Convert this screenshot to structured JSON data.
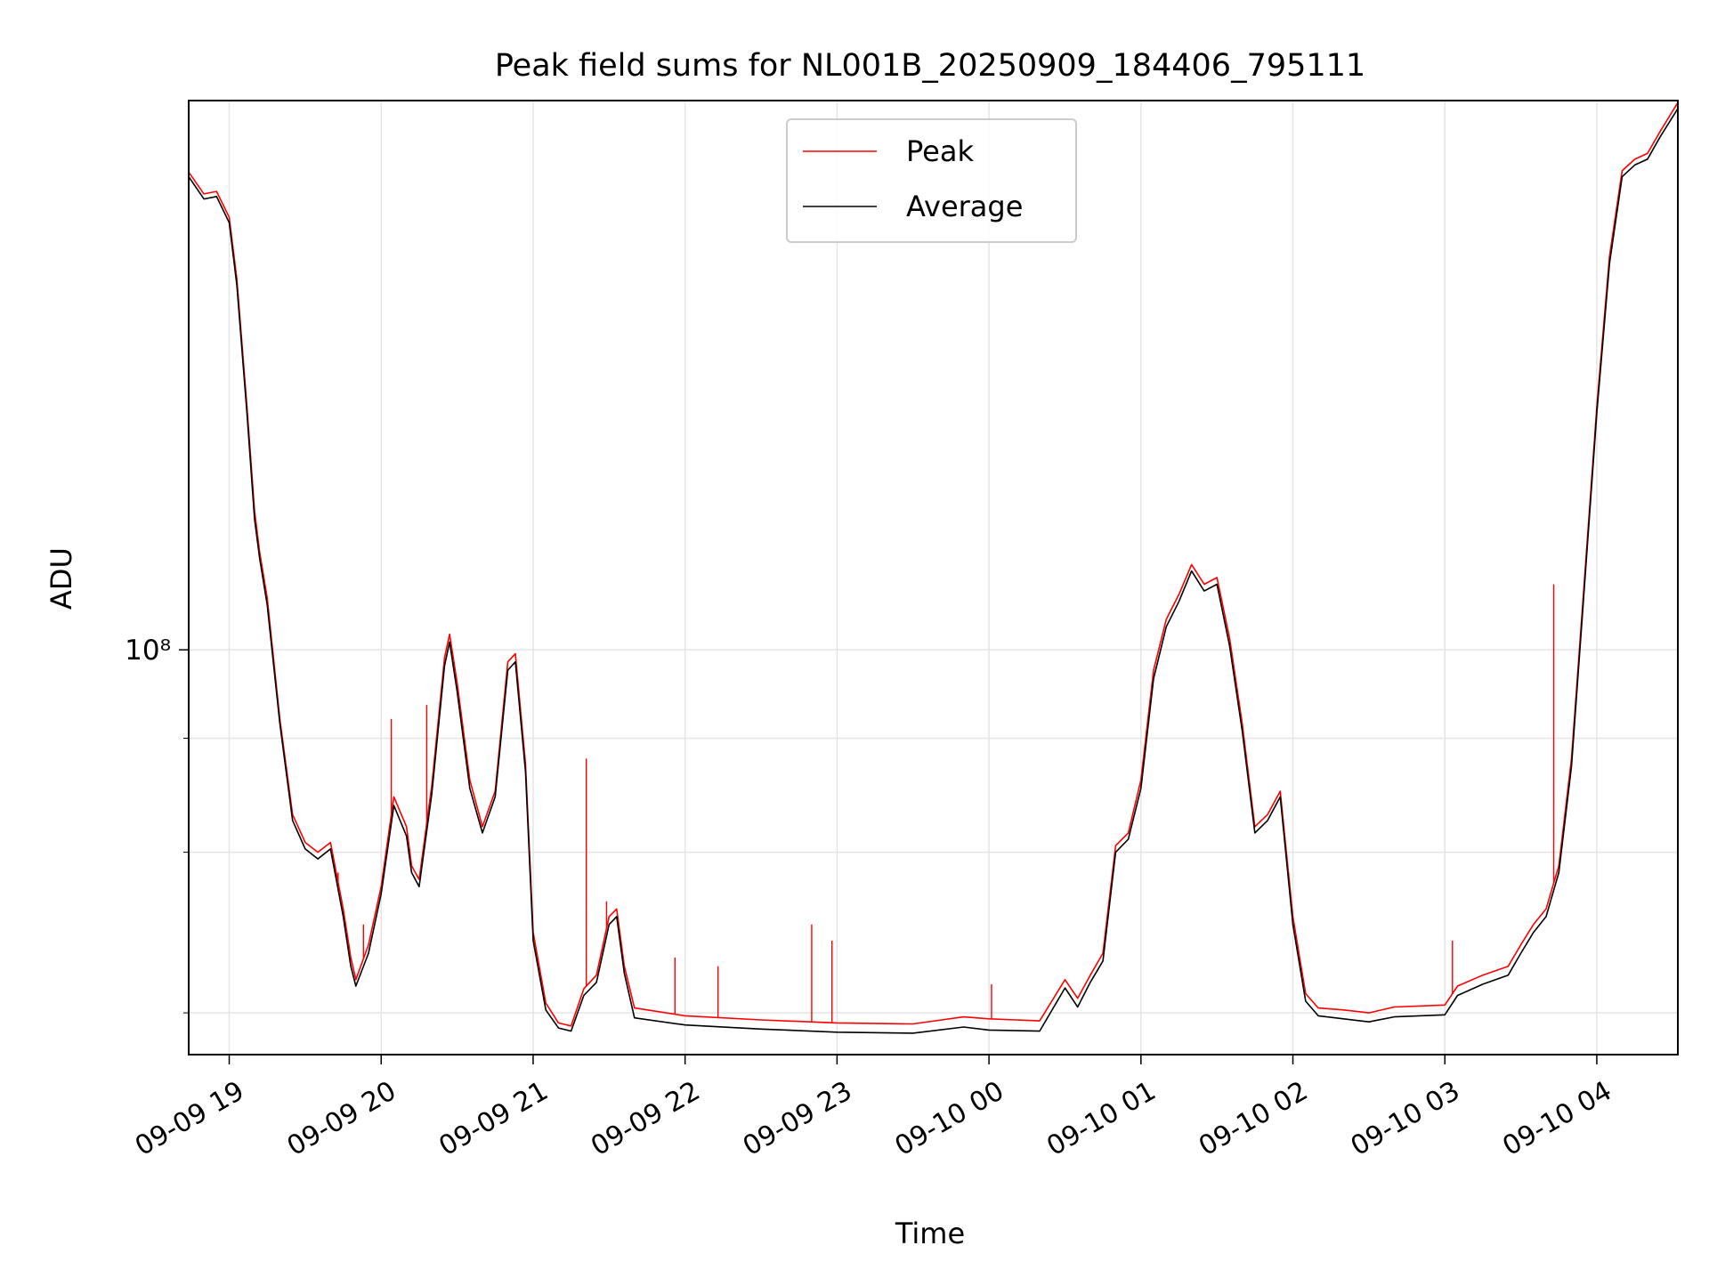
{
  "chart_data": {
    "type": "line",
    "title": "Peak field sums for NL001B_20250909_184406_795111",
    "xlabel": "Time",
    "ylabel": "ADU",
    "y_scale": "log",
    "grid": true,
    "legend_position": "top-center",
    "x_ticks": [
      "09-09 19",
      "09-09 20",
      "09-09 21",
      "09-09 22",
      "09-09 23",
      "09-10 00",
      "09-10 01",
      "09-10 02",
      "09-10 03",
      "09-10 04"
    ],
    "y_ticks": [
      {
        "value": 40000000,
        "label": ""
      },
      {
        "value": 60000000,
        "label": ""
      },
      {
        "value": 80000000,
        "label": ""
      },
      {
        "value": 100000000,
        "label": "10⁸"
      }
    ],
    "xlim": [
      "2025-09-09 18:44",
      "2025-09-10 04:32"
    ],
    "ylim": [
      36000000,
      400000000
    ],
    "series": [
      {
        "name": "Peak",
        "color": "#ff0000",
        "points": [
          [
            "2025-09-09 18:44",
            334000000
          ],
          [
            "2025-09-09 18:50",
            316000000
          ],
          [
            "2025-09-09 18:55",
            318000000
          ],
          [
            "2025-09-09 19:00",
            298000000
          ],
          [
            "2025-09-09 19:03",
            255000000
          ],
          [
            "2025-09-09 19:07",
            185000000
          ],
          [
            "2025-09-09 19:10",
            142000000
          ],
          [
            "2025-09-09 19:12",
            128000000
          ],
          [
            "2025-09-09 19:15",
            114000000
          ],
          [
            "2025-09-09 19:20",
            84000000
          ],
          [
            "2025-09-09 19:25",
            66000000
          ],
          [
            "2025-09-09 19:30",
            61500000
          ],
          [
            "2025-09-09 19:35",
            60000000
          ],
          [
            "2025-09-09 19:40",
            61500000
          ],
          [
            "2025-09-09 19:45",
            52000000
          ],
          [
            "2025-09-09 19:48",
            46000000
          ],
          [
            "2025-09-09 19:50",
            43500000
          ],
          [
            "2025-09-09 19:55",
            47500000
          ],
          [
            "2025-09-09 20:00",
            55000000
          ],
          [
            "2025-09-09 20:05",
            69000000
          ],
          [
            "2025-09-09 20:10",
            64000000
          ],
          [
            "2025-09-09 20:12",
            58000000
          ],
          [
            "2025-09-09 20:15",
            56000000
          ],
          [
            "2025-09-09 20:20",
            71000000
          ],
          [
            "2025-09-09 20:25",
            98000000
          ],
          [
            "2025-09-09 20:27",
            104000000
          ],
          [
            "2025-09-09 20:30",
            92000000
          ],
          [
            "2025-09-09 20:35",
            72000000
          ],
          [
            "2025-09-09 20:40",
            64000000
          ],
          [
            "2025-09-09 20:45",
            70000000
          ],
          [
            "2025-09-09 20:50",
            97000000
          ],
          [
            "2025-09-09 20:53",
            99000000
          ],
          [
            "2025-09-09 20:57",
            75000000
          ],
          [
            "2025-09-09 21:00",
            49000000
          ],
          [
            "2025-09-09 21:05",
            41000000
          ],
          [
            "2025-09-09 21:10",
            39000000
          ],
          [
            "2025-09-09 21:15",
            38700000
          ],
          [
            "2025-09-09 21:20",
            42500000
          ],
          [
            "2025-09-09 21:25",
            44000000
          ],
          [
            "2025-09-09 21:30",
            51000000
          ],
          [
            "2025-09-09 21:33",
            52000000
          ],
          [
            "2025-09-09 21:36",
            45000000
          ],
          [
            "2025-09-09 21:40",
            40500000
          ],
          [
            "2025-09-09 22:00",
            39700000
          ],
          [
            "2025-09-09 22:30",
            39300000
          ],
          [
            "2025-09-09 23:00",
            39000000
          ],
          [
            "2025-09-09 23:30",
            38900000
          ],
          [
            "2025-09-09 23:50",
            39600000
          ],
          [
            "2025-09-10 00:00",
            39400000
          ],
          [
            "2025-09-10 00:20",
            39200000
          ],
          [
            "2025-09-10 00:30",
            43500000
          ],
          [
            "2025-09-10 00:35",
            41500000
          ],
          [
            "2025-09-10 00:40",
            44000000
          ],
          [
            "2025-09-10 00:45",
            46500000
          ],
          [
            "2025-09-10 00:50",
            61000000
          ],
          [
            "2025-09-10 00:55",
            63000000
          ],
          [
            "2025-09-10 01:00",
            72000000
          ],
          [
            "2025-09-10 01:05",
            95000000
          ],
          [
            "2025-09-10 01:10",
            108000000
          ],
          [
            "2025-09-10 01:15",
            115000000
          ],
          [
            "2025-09-10 01:20",
            124000000
          ],
          [
            "2025-09-10 01:25",
            118000000
          ],
          [
            "2025-09-10 01:30",
            120000000
          ],
          [
            "2025-09-10 01:35",
            103000000
          ],
          [
            "2025-09-10 01:40",
            83000000
          ],
          [
            "2025-09-10 01:45",
            64000000
          ],
          [
            "2025-09-10 01:50",
            66000000
          ],
          [
            "2025-09-10 01:55",
            70000000
          ],
          [
            "2025-09-10 02:00",
            51000000
          ],
          [
            "2025-09-10 02:05",
            42000000
          ],
          [
            "2025-09-10 02:10",
            40500000
          ],
          [
            "2025-09-10 02:20",
            40300000
          ],
          [
            "2025-09-10 02:30",
            40000000
          ],
          [
            "2025-09-10 02:40",
            40600000
          ],
          [
            "2025-09-10 03:00",
            40800000
          ],
          [
            "2025-09-10 03:05",
            42800000
          ],
          [
            "2025-09-10 03:15",
            44000000
          ],
          [
            "2025-09-10 03:25",
            45000000
          ],
          [
            "2025-09-10 03:30",
            47500000
          ],
          [
            "2025-09-10 03:35",
            50000000
          ],
          [
            "2025-09-10 03:40",
            52000000
          ],
          [
            "2025-09-10 03:45",
            58000000
          ],
          [
            "2025-09-10 03:50",
            76000000
          ],
          [
            "2025-09-10 03:55",
            118000000
          ],
          [
            "2025-09-10 04:00",
            185000000
          ],
          [
            "2025-09-10 04:05",
            270000000
          ],
          [
            "2025-09-10 04:10",
            335000000
          ],
          [
            "2025-09-10 04:15",
            345000000
          ],
          [
            "2025-09-10 04:20",
            350000000
          ],
          [
            "2025-09-10 04:25",
            370000000
          ],
          [
            "2025-09-10 04:32",
            398000000
          ]
        ],
        "spikes": [
          [
            "2025-09-09 19:43",
            57000000
          ],
          [
            "2025-09-09 19:53",
            50000000
          ],
          [
            "2025-09-09 20:04",
            84000000
          ],
          [
            "2025-09-09 20:18",
            87000000
          ],
          [
            "2025-09-09 21:21",
            76000000
          ],
          [
            "2025-09-09 21:29",
            53000000
          ],
          [
            "2025-09-09 21:56",
            46000000
          ],
          [
            "2025-09-09 22:13",
            45000000
          ],
          [
            "2025-09-09 22:50",
            50000000
          ],
          [
            "2025-09-09 22:58",
            48000000
          ],
          [
            "2025-09-10 00:01",
            43000000
          ],
          [
            "2025-09-10 03:03",
            48000000
          ],
          [
            "2025-09-10 03:43",
            118000000
          ]
        ]
      },
      {
        "name": "Average",
        "color": "#000000",
        "points": [
          [
            "2025-09-09 18:44",
            330000000
          ],
          [
            "2025-09-09 18:50",
            312000000
          ],
          [
            "2025-09-09 18:55",
            314000000
          ],
          [
            "2025-09-09 19:00",
            294000000
          ],
          [
            "2025-09-09 19:03",
            251000000
          ],
          [
            "2025-09-09 19:07",
            182000000
          ],
          [
            "2025-09-09 19:10",
            139000000
          ],
          [
            "2025-09-09 19:12",
            126000000
          ],
          [
            "2025-09-09 19:15",
            112000000
          ],
          [
            "2025-09-09 19:20",
            83000000
          ],
          [
            "2025-09-09 19:25",
            65000000
          ],
          [
            "2025-09-09 19:30",
            60500000
          ],
          [
            "2025-09-09 19:35",
            59000000
          ],
          [
            "2025-09-09 19:40",
            60500000
          ],
          [
            "2025-09-09 19:45",
            51000000
          ],
          [
            "2025-09-09 19:48",
            45000000
          ],
          [
            "2025-09-09 19:50",
            42800000
          ],
          [
            "2025-09-09 19:55",
            46500000
          ],
          [
            "2025-09-09 20:00",
            54000000
          ],
          [
            "2025-09-09 20:05",
            67500000
          ],
          [
            "2025-09-09 20:10",
            62500000
          ],
          [
            "2025-09-09 20:12",
            57000000
          ],
          [
            "2025-09-09 20:15",
            55000000
          ],
          [
            "2025-09-09 20:20",
            69500000
          ],
          [
            "2025-09-09 20:25",
            96000000
          ],
          [
            "2025-09-09 20:27",
            102000000
          ],
          [
            "2025-09-09 20:30",
            90000000
          ],
          [
            "2025-09-09 20:35",
            70500000
          ],
          [
            "2025-09-09 20:40",
            63000000
          ],
          [
            "2025-09-09 20:45",
            69000000
          ],
          [
            "2025-09-09 20:50",
            95000000
          ],
          [
            "2025-09-09 20:53",
            97000000
          ],
          [
            "2025-09-09 20:57",
            73500000
          ],
          [
            "2025-09-09 21:00",
            48000000
          ],
          [
            "2025-09-09 21:05",
            40300000
          ],
          [
            "2025-09-09 21:10",
            38500000
          ],
          [
            "2025-09-09 21:15",
            38200000
          ],
          [
            "2025-09-09 21:20",
            41800000
          ],
          [
            "2025-09-09 21:25",
            43200000
          ],
          [
            "2025-09-09 21:30",
            50000000
          ],
          [
            "2025-09-09 21:33",
            51000000
          ],
          [
            "2025-09-09 21:36",
            44200000
          ],
          [
            "2025-09-09 21:40",
            39500000
          ],
          [
            "2025-09-09 22:00",
            38800000
          ],
          [
            "2025-09-09 22:30",
            38400000
          ],
          [
            "2025-09-09 23:00",
            38100000
          ],
          [
            "2025-09-09 23:30",
            38000000
          ],
          [
            "2025-09-09 23:50",
            38600000
          ],
          [
            "2025-09-10 00:00",
            38300000
          ],
          [
            "2025-09-10 00:20",
            38200000
          ],
          [
            "2025-09-10 00:30",
            42600000
          ],
          [
            "2025-09-10 00:35",
            40600000
          ],
          [
            "2025-09-10 00:40",
            43200000
          ],
          [
            "2025-09-10 00:45",
            45600000
          ],
          [
            "2025-09-10 00:50",
            60000000
          ],
          [
            "2025-09-10 00:55",
            62000000
          ],
          [
            "2025-09-10 01:00",
            70500000
          ],
          [
            "2025-09-10 01:05",
            93000000
          ],
          [
            "2025-09-10 01:10",
            106000000
          ],
          [
            "2025-09-10 01:15",
            113000000
          ],
          [
            "2025-09-10 01:20",
            122000000
          ],
          [
            "2025-09-10 01:25",
            116000000
          ],
          [
            "2025-09-10 01:30",
            118000000
          ],
          [
            "2025-09-10 01:35",
            101000000
          ],
          [
            "2025-09-10 01:40",
            81500000
          ],
          [
            "2025-09-10 01:45",
            63000000
          ],
          [
            "2025-09-10 01:50",
            65000000
          ],
          [
            "2025-09-10 01:55",
            69000000
          ],
          [
            "2025-09-10 02:00",
            50000000
          ],
          [
            "2025-09-10 02:05",
            41200000
          ],
          [
            "2025-09-10 02:10",
            39700000
          ],
          [
            "2025-09-10 02:20",
            39400000
          ],
          [
            "2025-09-10 02:30",
            39100000
          ],
          [
            "2025-09-10 02:40",
            39600000
          ],
          [
            "2025-09-10 03:00",
            39800000
          ],
          [
            "2025-09-10 03:05",
            41800000
          ],
          [
            "2025-09-10 03:15",
            43000000
          ],
          [
            "2025-09-10 03:25",
            44000000
          ],
          [
            "2025-09-10 03:30",
            46500000
          ],
          [
            "2025-09-10 03:35",
            49000000
          ],
          [
            "2025-09-10 03:40",
            51000000
          ],
          [
            "2025-09-10 03:45",
            57000000
          ],
          [
            "2025-09-10 03:50",
            74500000
          ],
          [
            "2025-09-10 03:55",
            116000000
          ],
          [
            "2025-09-10 04:00",
            182000000
          ],
          [
            "2025-09-10 04:05",
            265000000
          ],
          [
            "2025-09-10 04:10",
            330000000
          ],
          [
            "2025-09-10 04:15",
            340000000
          ],
          [
            "2025-09-10 04:20",
            345000000
          ],
          [
            "2025-09-10 04:25",
            365000000
          ],
          [
            "2025-09-10 04:32",
            392000000
          ]
        ]
      }
    ]
  }
}
